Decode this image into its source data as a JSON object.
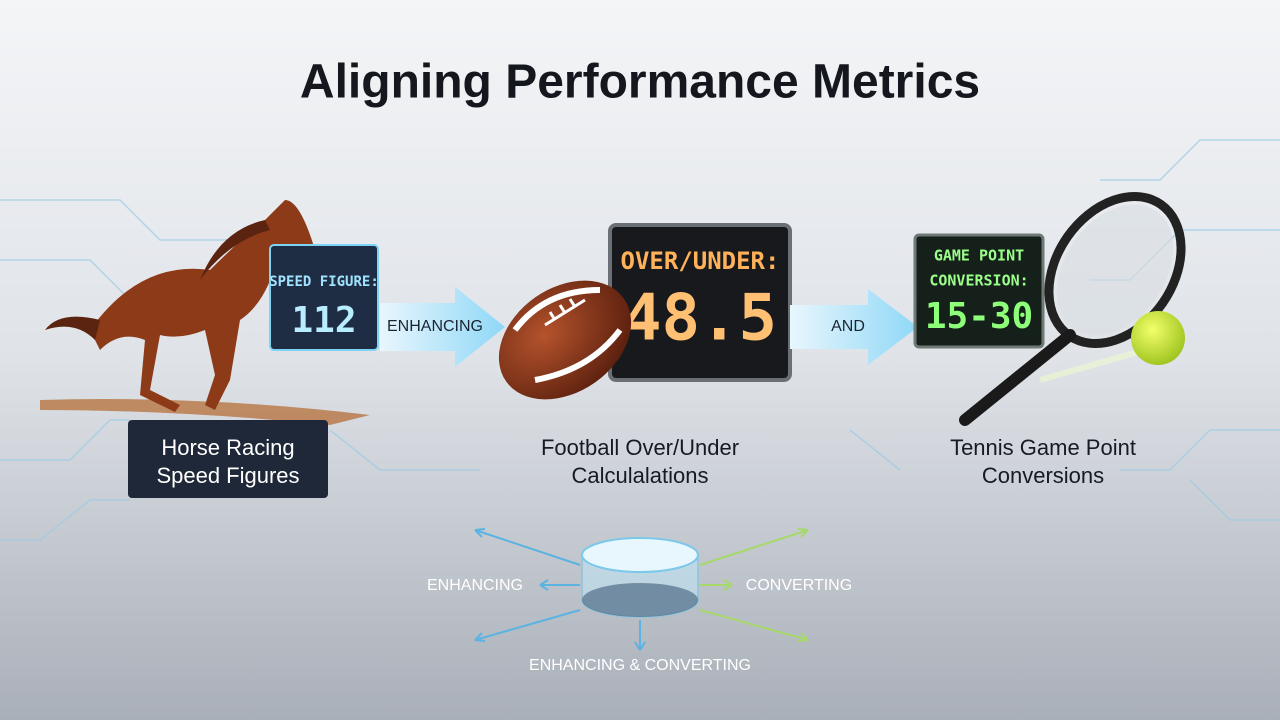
{
  "title": "Aligning Performance Metrics",
  "panels": [
    {
      "board_title": "SPEED FIGURE:",
      "board_value": "112",
      "label": [
        "Horse Racing",
        "Speed Figures"
      ]
    },
    {
      "board_title": "OVER/UNDER:",
      "board_value": "48.5",
      "label": [
        "Football Over/Under",
        "Calculalations"
      ]
    },
    {
      "board_title": [
        "GAME POINT",
        "CONVERSION:"
      ],
      "board_value": "15-30",
      "label": [
        "Tennis Game Point",
        "Conversions"
      ]
    }
  ],
  "connectors": [
    "ENHANCING",
    "AND"
  ],
  "hub": {
    "left": "ENHANCING",
    "right": "CONVERTING",
    "bottom": "ENHANCING & CONVERTING"
  }
}
